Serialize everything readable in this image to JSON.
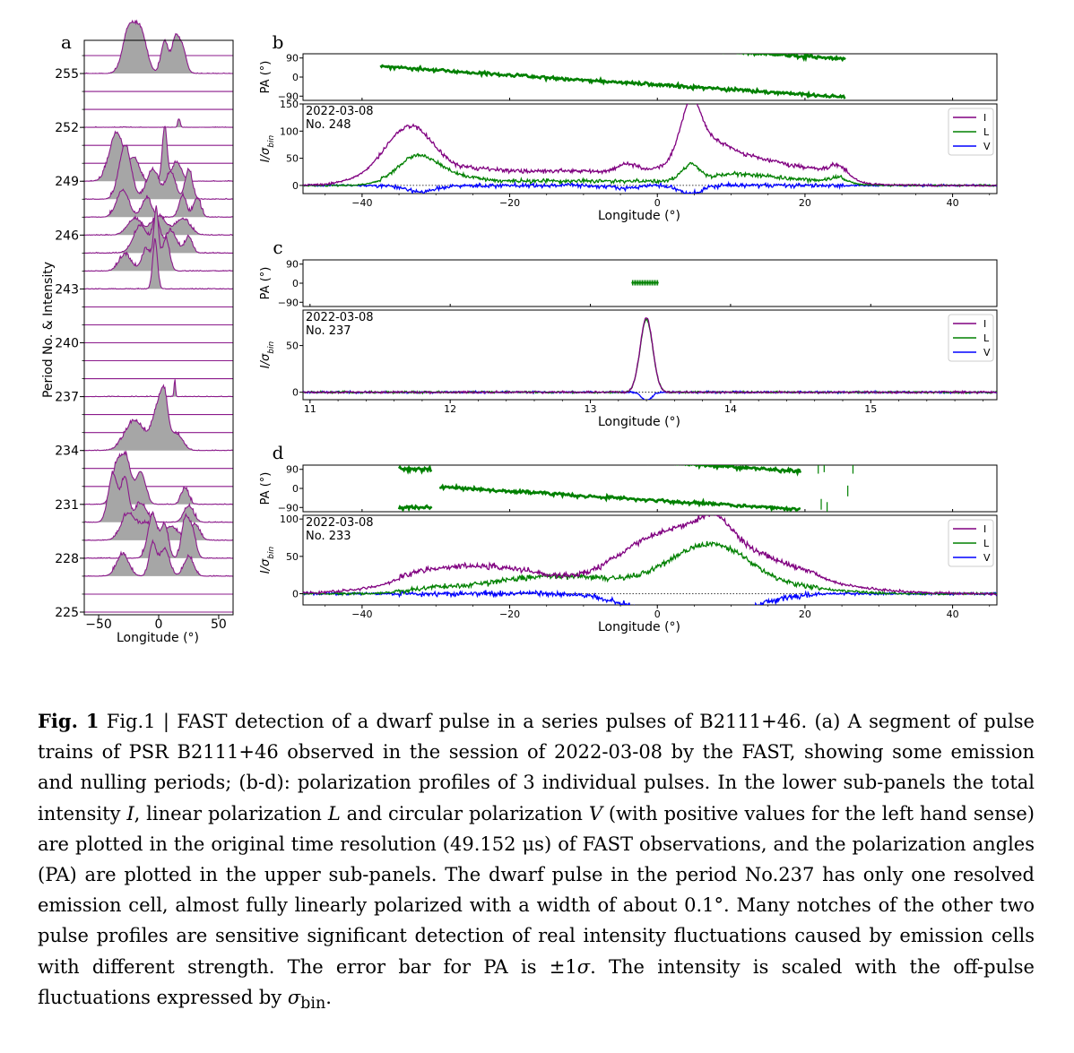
{
  "figure": {
    "panel_letters": [
      "a",
      "b",
      "c",
      "d"
    ],
    "panel_a": {
      "ylabel": "Period No. & Intensity",
      "xlabel": "Longitude (°)",
      "xticks": [
        "−50",
        "0",
        "50"
      ],
      "period_labels": [
        "255",
        "252",
        "249",
        "246",
        "243",
        "240",
        "237",
        "234",
        "231",
        "228",
        "225"
      ],
      "colors": {
        "line": "#8b1a8b",
        "fill": "#a6a6a6"
      }
    },
    "polar_panels": {
      "pa_label": "PA (°)",
      "int_label": "I/σ",
      "int_label_sub": "bin",
      "xlabel": "Longitude (°)",
      "legend": [
        "I",
        "L",
        "V"
      ],
      "colors": {
        "I": "#800080",
        "L": "#008000",
        "V": "#0000ff",
        "PA": "#008000"
      }
    }
  },
  "chart_data": [
    {
      "type": "line",
      "panel": "a",
      "title": "",
      "xlabel": "Longitude (°)",
      "ylabel": "Period No. & Intensity",
      "xlim": [
        -62,
        62
      ],
      "x_ticks": [
        -50,
        0,
        50
      ],
      "periods": [
        256,
        255,
        254,
        253,
        252,
        251,
        250,
        249,
        248,
        247,
        246,
        245,
        244,
        243,
        242,
        241,
        240,
        239,
        238,
        237,
        236,
        235,
        234,
        233,
        232,
        231,
        230,
        229,
        228,
        227,
        226,
        225
      ],
      "emitting_periods": [
        {
          "period": 255,
          "peaks": [
            [
              -25,
              5,
              0.8
            ],
            [
              -15,
              5,
              0.75
            ],
            [
              5,
              3,
              0.6
            ],
            [
              14,
              3,
              0.65
            ],
            [
              20,
              3,
              0.45
            ]
          ]
        },
        {
          "period": 252,
          "peaks": [
            [
              17,
              1,
              0.15
            ]
          ]
        },
        {
          "period": 249,
          "peaks": [
            [
              -35,
              6,
              0.9
            ],
            [
              -20,
              4,
              0.4
            ],
            [
              5,
              2,
              1.0
            ],
            [
              15,
              4,
              0.35
            ]
          ]
        },
        {
          "period": 248,
          "peaks": [
            [
              -28,
              5,
              1.0
            ],
            [
              -5,
              5,
              0.55
            ],
            [
              10,
              4,
              0.5
            ],
            [
              25,
              3,
              0.55
            ]
          ]
        },
        {
          "period": 247,
          "peaks": [
            [
              -30,
              5,
              0.5
            ],
            [
              -10,
              4,
              0.35
            ],
            [
              20,
              3,
              0.4
            ],
            [
              32,
              3,
              0.35
            ]
          ]
        },
        {
          "period": 246,
          "peaks": [
            [
              -20,
              6,
              0.3
            ],
            [
              0,
              6,
              0.35
            ],
            [
              20,
              6,
              0.3
            ]
          ]
        },
        {
          "period": 245,
          "peaks": [
            [
              -15,
              6,
              0.5
            ],
            [
              -2,
              3,
              0.6
            ],
            [
              10,
              5,
              0.4
            ],
            [
              25,
              3,
              0.3
            ]
          ]
        },
        {
          "period": 244,
          "peaks": [
            [
              -28,
              5,
              0.3
            ],
            [
              -10,
              4,
              0.4
            ],
            [
              -2,
              2,
              1.1
            ],
            [
              6,
              3,
              0.6
            ]
          ]
        },
        {
          "period": 243,
          "peaks": [
            [
              -3,
              2,
              0.9
            ]
          ]
        },
        {
          "period": 237,
          "peaks": [
            [
              13.4,
              0.6,
              0.3
            ]
          ]
        },
        {
          "period": 234,
          "peaks": [
            [
              -20,
              8,
              0.55
            ],
            [
              0,
              5,
              0.8
            ],
            [
              5,
              3,
              0.6
            ],
            [
              15,
              5,
              0.3
            ]
          ]
        },
        {
          "period": 231,
          "peaks": [
            [
              -35,
              4,
              0.7
            ],
            [
              -27,
              4,
              0.8
            ],
            [
              -15,
              4,
              0.6
            ],
            [
              22,
              3,
              0.3
            ]
          ]
        },
        {
          "period": 230,
          "peaks": [
            [
              -38,
              4,
              0.9
            ],
            [
              -28,
              3,
              0.8
            ],
            [
              -15,
              5,
              0.35
            ],
            [
              25,
              4,
              0.3
            ]
          ]
        },
        {
          "period": 229,
          "peaks": [
            [
              -25,
              6,
              0.5
            ],
            [
              -10,
              5,
              0.3
            ],
            [
              10,
              6,
              0.25
            ],
            [
              30,
              4,
              0.3
            ]
          ]
        },
        {
          "period": 228,
          "peaks": [
            [
              -5,
              4,
              0.8
            ],
            [
              5,
              3,
              0.6
            ],
            [
              22,
              3,
              0.7
            ],
            [
              28,
              3,
              0.5
            ]
          ]
        },
        {
          "period": 227,
          "peaks": [
            [
              -30,
              5,
              0.4
            ],
            [
              -5,
              3,
              0.6
            ],
            [
              5,
              4,
              0.5
            ],
            [
              25,
              4,
              0.35
            ]
          ]
        }
      ]
    },
    {
      "type": "line",
      "panel": "b",
      "annotation": [
        "2022-03-08",
        "No. 248"
      ],
      "xlim": [
        -48,
        46
      ],
      "x_ticks": [
        -40,
        -20,
        0,
        20,
        40
      ],
      "pa_ylim": [
        -110,
        110
      ],
      "pa_ticks": [
        90,
        0,
        -90
      ],
      "int_ylim": [
        -15,
        150
      ],
      "int_ticks": [
        150,
        100,
        50,
        0
      ],
      "onpulse": [
        -38,
        26
      ],
      "series": [
        {
          "name": "I",
          "peaks": [
            [
              -33,
              2.8,
              65
            ],
            [
              -36,
              4,
              30
            ],
            [
              -25,
              4,
              10
            ],
            [
              -12,
              6,
              7
            ],
            [
              -4,
              1.5,
              15
            ],
            [
              4.5,
              1.3,
              85
            ],
            [
              6,
              3,
              45
            ],
            [
              11,
              5,
              20
            ],
            [
              14,
              8,
              12
            ],
            [
              24.5,
              1.2,
              15
            ]
          ],
          "base": 20
        },
        {
          "name": "L",
          "peaks": [
            [
              -32.5,
              2.5,
              45
            ],
            [
              -28,
              3,
              10
            ],
            [
              4.5,
              1.2,
              30
            ],
            [
              10,
              3,
              10
            ],
            [
              15,
              4,
              6
            ],
            [
              24.5,
              1.2,
              8
            ]
          ],
          "base": 8
        },
        {
          "name": "V",
          "peaks": [
            [
              -32,
              2,
              -12
            ],
            [
              -5,
              2,
              -5
            ],
            [
              4.5,
              1.5,
              -15
            ]
          ],
          "base": 0
        }
      ]
    },
    {
      "type": "line",
      "panel": "c",
      "annotation": [
        "2022-03-08",
        "No. 237"
      ],
      "xlim": [
        10.95,
        15.9
      ],
      "x_ticks": [
        11,
        12,
        13,
        14,
        15
      ],
      "pa_ylim": [
        -110,
        110
      ],
      "pa_ticks": [
        90,
        0,
        -90
      ],
      "pa_points": {
        "x_start": 13.3,
        "x_end": 13.48,
        "value": 2
      },
      "int_ylim": [
        -8,
        88
      ],
      "int_ticks": [
        50,
        0
      ],
      "series": [
        {
          "name": "I",
          "peaks": [
            [
              13.4,
              0.045,
              80
            ]
          ]
        },
        {
          "name": "L",
          "peaks": [
            [
              13.4,
              0.045,
              78
            ]
          ]
        },
        {
          "name": "V",
          "peaks": [
            [
              13.4,
              0.035,
              -9
            ]
          ]
        }
      ]
    },
    {
      "type": "line",
      "panel": "d",
      "annotation": [
        "2022-03-08",
        "No. 233"
      ],
      "xlim": [
        -48,
        46
      ],
      "x_ticks": [
        -40,
        -20,
        0,
        20,
        40
      ],
      "pa_ylim": [
        -110,
        110
      ],
      "pa_ticks": [
        90,
        0,
        -90
      ],
      "int_ylim": [
        -15,
        105
      ],
      "int_ticks": [
        100,
        50,
        0
      ],
      "onpulse": [
        -35,
        22
      ],
      "series": [
        {
          "name": "I",
          "peaks": [
            [
              -27,
              8,
              25
            ],
            [
              -18,
              5,
              8
            ],
            [
              -2,
              5,
              45
            ],
            [
              6,
              5,
              55
            ],
            [
              8,
              2,
              20
            ],
            [
              13,
              6,
              20
            ],
            [
              20,
              8,
              12
            ]
          ],
          "base": 10
        },
        {
          "name": "L",
          "peaks": [
            [
              -30,
              4,
              5
            ],
            [
              -17,
              6,
              18
            ],
            [
              -8,
              5,
              12
            ],
            [
              5,
              5,
              48
            ],
            [
              10,
              4,
              25
            ],
            [
              18,
              6,
              8
            ]
          ],
          "base": 2
        },
        {
          "name": "V",
          "peaks": [
            [
              -3,
              4,
              -10
            ],
            [
              5,
              5,
              -28
            ],
            [
              12,
              4,
              -10
            ]
          ],
          "base": 0
        }
      ]
    }
  ],
  "caption": {
    "label": "Fig. 1",
    "text_1": "  Fig.1 | FAST detection of a dwarf pulse in a series pulses of B2111+46. (a) A segment of pulse trains of PSR B2111+46 observed in the session of 2022-03-08 by the FAST, showing some emission and nulling periods; (b-d): polarization profiles of 3 individual pulses. In the lower sub-panels the total intensity ",
    "var_I": "I",
    "text_2": ", linear polarization ",
    "var_L": "L",
    "text_3": " and circular polarization ",
    "var_V": "V",
    "text_4": " (with positive values for the left hand sense) are plotted in the original time resolution (49.152 μs) of FAST observations, and the polarization angles (PA) are plotted in the upper sub-panels. The dwarf pulse in the period No.237 has only one resolved emission cell, almost fully linearly polarized with a width of about 0.1°. Many notches of the other two pulse profiles are sensitive significant detection of real intensity fluctuations caused by emission cells with different strength. The error bar for PA is ±1",
    "var_sigma": "σ",
    "text_5": ". The intensity is scaled with the off-pulse fluctuations expressed by ",
    "var_sigma_bin": "σ",
    "sub_bin": "bin",
    "text_6": "."
  }
}
